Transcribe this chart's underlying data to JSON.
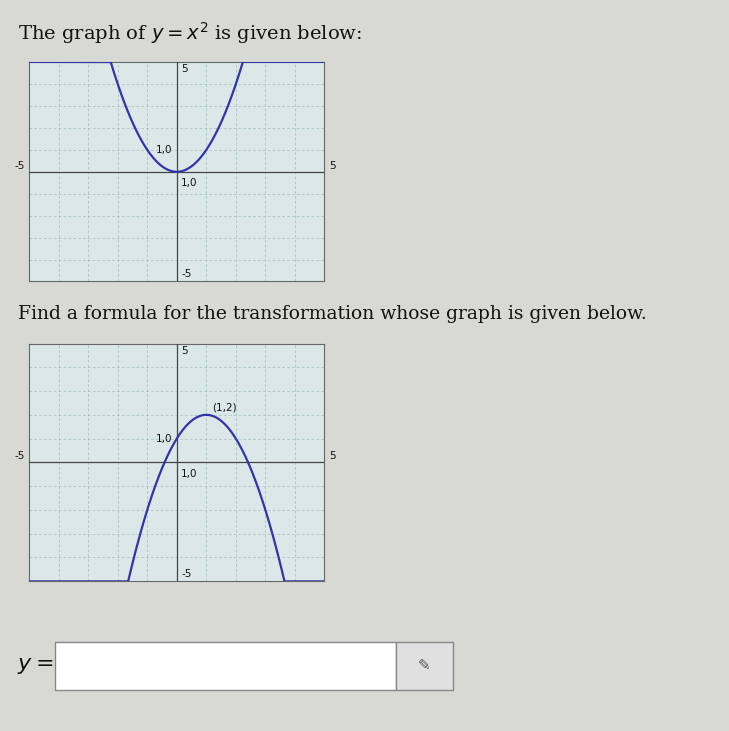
{
  "title_text": "The graph of $y = x^2$ is given below:",
  "find_text": "Find a formula for the transformation whose graph is given below.",
  "y_label_text": "$y=$",
  "graph1": {
    "func": "x^2",
    "xlim": [
      -5,
      5
    ],
    "ylim": [
      -5,
      5
    ],
    "color": "#3333aa",
    "linewidth": 1.6,
    "grid_color": "#a0bcbc",
    "axis_color": "#444444",
    "bg_color": "#dce8e8"
  },
  "graph2": {
    "func": "-(x-1)^2+2",
    "xlim": [
      -5,
      5
    ],
    "ylim": [
      -5,
      5
    ],
    "peak_label": "(1,2)",
    "color": "#3333aa",
    "linewidth": 1.6,
    "grid_color": "#a0bcbc",
    "axis_color": "#444444",
    "bg_color": "#dce8e8"
  },
  "page_bg": "#d8d8d4",
  "text_color": "#111111",
  "label_fontsize": 7.5,
  "title_fontsize": 14,
  "find_fontsize": 13.5
}
